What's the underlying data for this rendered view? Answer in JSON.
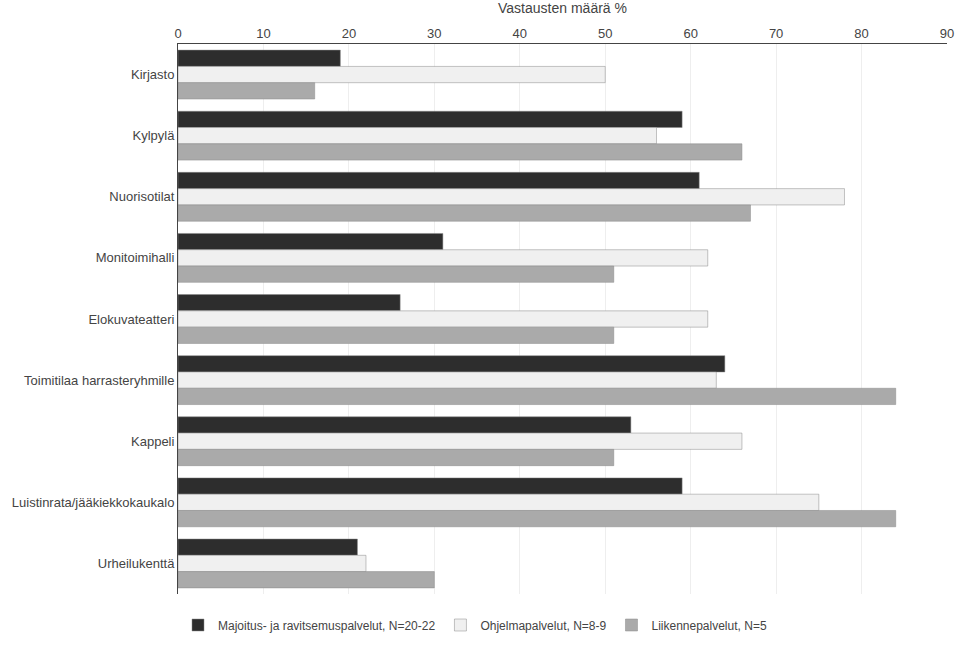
{
  "chart_data": {
    "type": "bar",
    "orientation": "horizontal",
    "xlabel": "Vastausten määrä %",
    "categories": [
      "Kirjasto",
      "Kylpylä",
      "Nuorisotilat",
      "Monitoimihalli",
      "Elokuvateatteri",
      "Toimitilaa harrasteryhmille",
      "Kappeli",
      "Luistinrata/jääkiekkokaukalo",
      "Urheilukenttä"
    ],
    "series": [
      {
        "name": "Majoitus- ja ravitsemuspalvelut, N=20-22",
        "color": "#2d2d2d",
        "values": [
          19,
          59,
          61,
          31,
          26,
          64,
          53,
          59,
          21
        ]
      },
      {
        "name": "Ohjelmapalvelut, N=8-9",
        "color": "#f0f0f0",
        "values": [
          50,
          56,
          78,
          62,
          62,
          63,
          66,
          75,
          22
        ]
      },
      {
        "name": "Liikennepalvelut, N=5",
        "color": "#aaaaaa",
        "values": [
          16,
          66,
          67,
          51,
          51,
          84,
          51,
          84,
          30
        ]
      }
    ],
    "xlim": [
      0,
      90
    ],
    "xticks": [
      0,
      10,
      20,
      30,
      40,
      50,
      60,
      70,
      80,
      90
    ],
    "grid": true,
    "legend": "lower left"
  }
}
